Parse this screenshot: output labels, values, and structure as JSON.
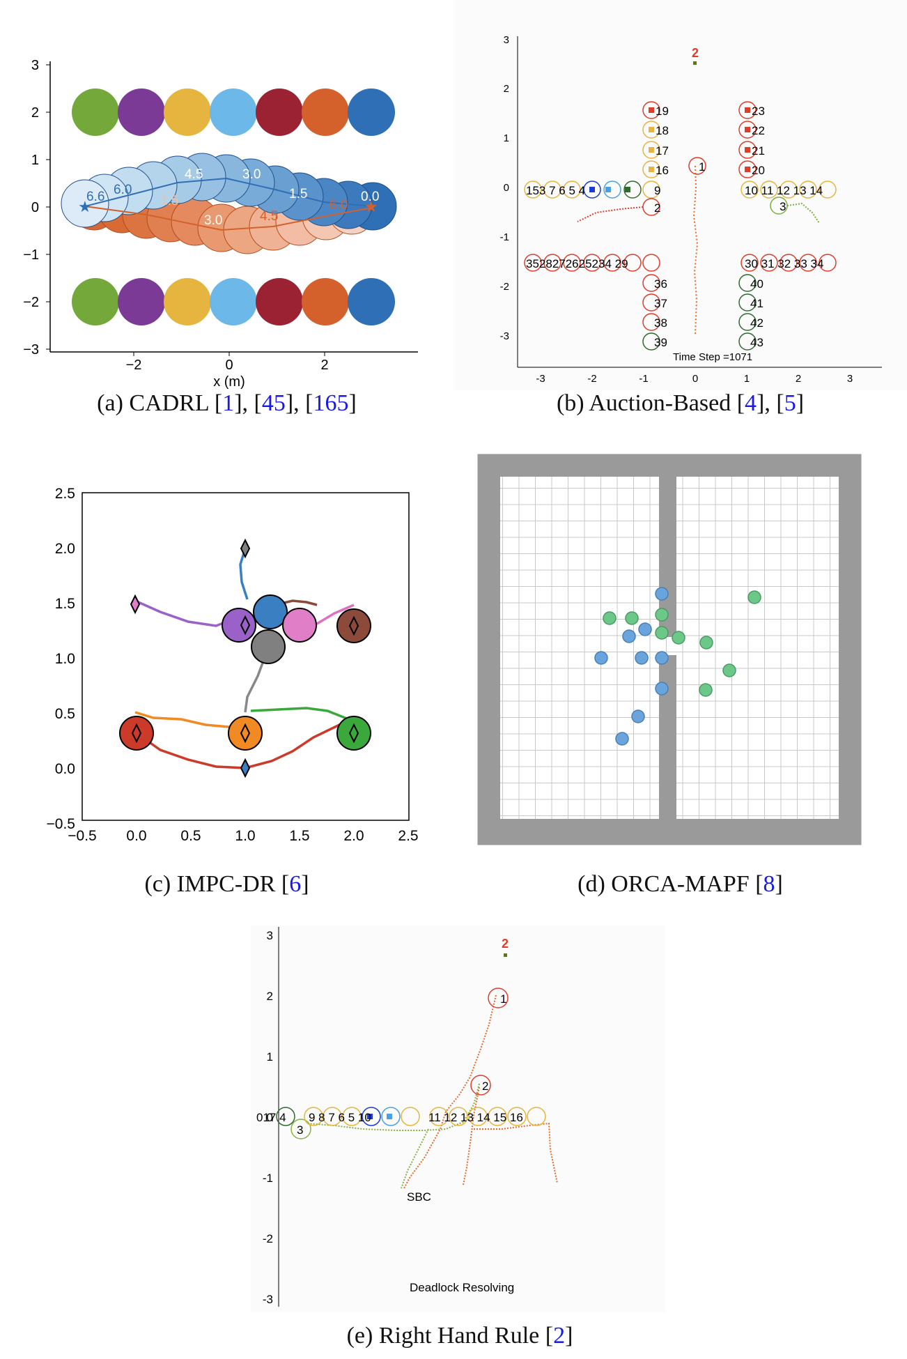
{
  "figures": {
    "a": {
      "caption_prefix": "(a) CADRL [",
      "refs": [
        "1",
        "45",
        "165"
      ],
      "xlabel": "x (m)",
      "xticks": [
        "−2",
        "0",
        "2"
      ],
      "yticks": [
        "3",
        "2",
        "1",
        "0",
        "−1",
        "−2",
        "−3"
      ],
      "top_row_colors": [
        "#74a83a",
        "#7a3a96",
        "#e6b53f",
        "#6cb8e8",
        "#9b2233",
        "#d4602c",
        "#2f6fb5"
      ],
      "blue_labels": [
        "6.6",
        "6.0",
        "4.5",
        "3.0",
        "1.5",
        "0.0"
      ],
      "orange_labels": [
        "1.5",
        "3.0",
        "4.5",
        "6.0",
        "0.0"
      ]
    },
    "b": {
      "caption_prefix": "(b) Auction-Based [",
      "refs": [
        "4",
        "5"
      ],
      "yticks": [
        "3",
        "2",
        "1",
        "0",
        "-1",
        "-2",
        "-3"
      ],
      "xticks": [
        "-3",
        "-2",
        "-1",
        "0",
        "1",
        "2",
        "3"
      ],
      "time_step": "Time Step =1071",
      "top_label": "2",
      "agents_left_col": [
        "19",
        "18",
        "17",
        "16",
        "9",
        "2"
      ],
      "agents_right_col": [
        "23",
        "22",
        "21",
        "20",
        "10"
      ],
      "agents_row0_left": "153 7 6 5 4",
      "agents_row0_right": "10 11 12 13 14",
      "agent_center": "1",
      "agent_3": "3",
      "agents_row_m15_left": "3528272625234 29",
      "agents_row_m15_right": "30 31 32 33 34",
      "agents_bottom_left": [
        "36",
        "37",
        "38",
        "39"
      ],
      "agents_bottom_right": [
        "40",
        "41",
        "42",
        "43"
      ]
    },
    "c": {
      "caption_prefix": "(c) IMPC-DR [",
      "refs": [
        "6"
      ],
      "yticks": [
        "2.5",
        "2.0",
        "1.5",
        "1.0",
        "0.5",
        "0.0",
        "−0.5"
      ],
      "xticks": [
        "−0.5",
        "0.0",
        "0.5",
        "1.0",
        "1.5",
        "2.0",
        "2.5"
      ]
    },
    "d": {
      "caption_prefix": "(d) ORCA-MAPF [",
      "refs": [
        "8"
      ]
    },
    "e": {
      "caption_prefix": "(e) Right Hand Rule [",
      "refs": [
        "2"
      ],
      "yticks": [
        "3",
        "2",
        "1",
        "0",
        "-1",
        "-2",
        "-3"
      ],
      "top_label": "2",
      "agent_1": "1",
      "agent_2": "2",
      "agent_3": "3",
      "row_left": "017 4",
      "row_mid": "9 8 7 6 5 10",
      "row_right": "11 12 13 14 15 16",
      "sbc": "SBC",
      "deadlock": "Deadlock Resolving"
    }
  }
}
